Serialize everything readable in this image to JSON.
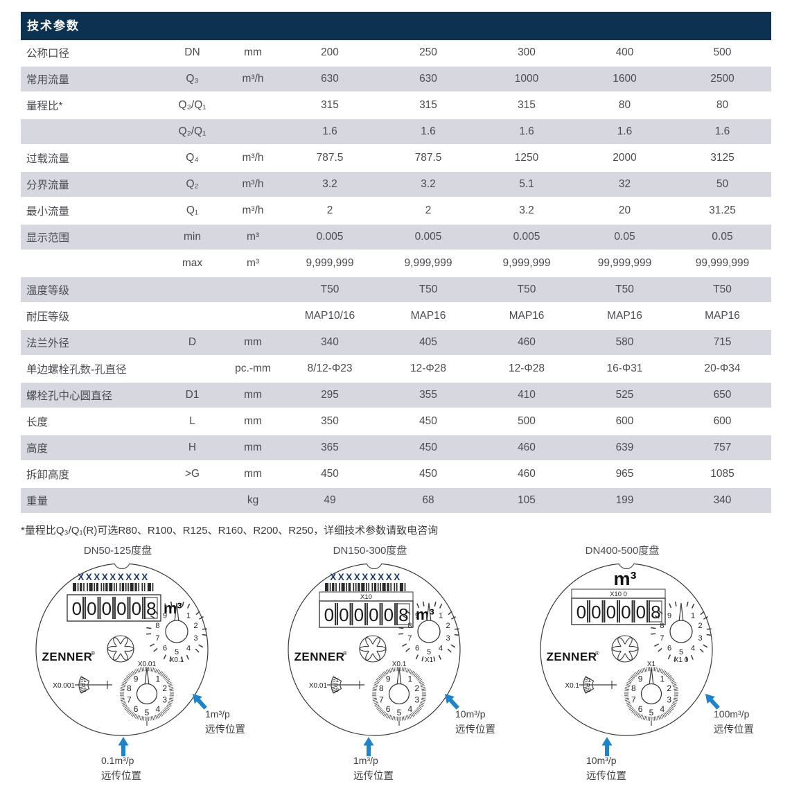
{
  "colors": {
    "header_bg": "#0d3150",
    "row_alt": "#d7d8df",
    "table_text": "#4b4c51",
    "line": "#3a3a3a",
    "serial": "#1c3a68",
    "arrow": "#1f83ca",
    "barcode": "#2a2a2a"
  },
  "table": {
    "title": "技术参数",
    "rows": [
      {
        "label": "公称口径",
        "symbol": "DN",
        "unit": "mm",
        "values": [
          "200",
          "250",
          "300",
          "400",
          "500"
        ]
      },
      {
        "label": "常用流量",
        "symbol": "Q₃",
        "unit": "m³/h",
        "values": [
          "630",
          "630",
          "1000",
          "1600",
          "2500"
        ]
      },
      {
        "label": "量程比*",
        "symbol": "Q₃/Q₁",
        "unit": "",
        "values": [
          "315",
          "315",
          "315",
          "80",
          "80"
        ]
      },
      {
        "label": "",
        "symbol": "Q₂/Q₁",
        "unit": "",
        "values": [
          "1.6",
          "1.6",
          "1.6",
          "1.6",
          "1.6"
        ]
      },
      {
        "label": "过载流量",
        "symbol": "Q₄",
        "unit": "m³/h",
        "values": [
          "787.5",
          "787.5",
          "1250",
          "2000",
          "3125"
        ]
      },
      {
        "label": "分界流量",
        "symbol": "Q₂",
        "unit": "m³/h",
        "values": [
          "3.2",
          "3.2",
          "5.1",
          "32",
          "50"
        ]
      },
      {
        "label": "最小流量",
        "symbol": "Q₁",
        "unit": "m³/h",
        "values": [
          "2",
          "2",
          "3.2",
          "20",
          "31.25"
        ]
      },
      {
        "label": "显示范围",
        "symbol": "min",
        "unit": "m³",
        "values": [
          "0.005",
          "0.005",
          "0.005",
          "0.05",
          "0.05"
        ]
      },
      {
        "label": "",
        "symbol": "max",
        "unit": "m³",
        "values": [
          "9,999,999",
          "9,999,999",
          "9,999,999",
          "99,999,999",
          "99,999,999"
        ]
      },
      {
        "label": "温度等级",
        "symbol": "",
        "unit": "",
        "values": [
          "T50",
          "T50",
          "T50",
          "T50",
          "T50"
        ]
      },
      {
        "label": "耐压等级",
        "symbol": "",
        "unit": "",
        "values": [
          "MAP10/16",
          "MAP16",
          "MAP16",
          "MAP16",
          "MAP16"
        ]
      },
      {
        "label": "法兰外径",
        "symbol": "D",
        "unit": "mm",
        "values": [
          "340",
          "405",
          "460",
          "580",
          "715"
        ]
      },
      {
        "label": "单边螺栓孔数-孔直径",
        "symbol": "",
        "unit": "pc.-mm",
        "values": [
          "8/12-Φ23",
          "12-Φ28",
          "12-Φ28",
          "16-Φ31",
          "20-Φ34"
        ]
      },
      {
        "label": "螺栓孔中心圆直径",
        "symbol": "D1",
        "unit": "mm",
        "values": [
          "295",
          "355",
          "410",
          "525",
          "650"
        ]
      },
      {
        "label": "长度",
        "symbol": "L",
        "unit": "mm",
        "values": [
          "350",
          "450",
          "500",
          "600",
          "600"
        ]
      },
      {
        "label": "高度",
        "symbol": "H",
        "unit": "mm",
        "values": [
          "365",
          "450",
          "460",
          "639",
          "757"
        ]
      },
      {
        "label": "拆卸高度",
        "symbol": ">G",
        "unit": "mm",
        "values": [
          "450",
          "450",
          "460",
          "965",
          "1085"
        ]
      },
      {
        "label": "重量",
        "symbol": "",
        "unit": "kg",
        "values": [
          "49",
          "68",
          "105",
          "199",
          "340"
        ]
      }
    ]
  },
  "footnote": "*量程比Q₃/Q₁(R)可选R80、R100、R125、R160、R200、R250，详细技术参数请致电咨询",
  "dials": {
    "brand": "ZENNER",
    "reg_mark": "®",
    "serial": "XXXXXXXXX",
    "unit": "m³",
    "register_digits": [
      "0",
      "0",
      "0",
      "0",
      "0",
      "8"
    ],
    "pointer_digits": [
      "1",
      "2",
      "3",
      "4",
      "5",
      "6",
      "7",
      "8",
      "9"
    ],
    "sector_digits": [
      "1",
      "0",
      "9"
    ],
    "items": [
      {
        "title": "DN50-125度盘",
        "show_serial": true,
        "show_barcode": true,
        "unit_position": "right",
        "register_top_label": "",
        "top_right_dial_label": "X0.1",
        "bottom_dial_label": "X0.01",
        "sector_label": "X0.001",
        "arrow_right_value": "1m³/p",
        "arrow_right_caption": "远传位置",
        "arrow_bottom_value": "0.1m³/p",
        "arrow_bottom_caption": "远传位置"
      },
      {
        "title": "DN150-300度盘",
        "show_serial": true,
        "show_barcode": true,
        "unit_position": "right",
        "register_top_label": "X10",
        "top_right_dial_label": "X1",
        "bottom_dial_label": "X0.1",
        "sector_label": "X0.01",
        "arrow_right_value": "10m³/p",
        "arrow_right_caption": "远传位置",
        "arrow_bottom_value": "1m³/p",
        "arrow_bottom_caption": "远传位置"
      },
      {
        "title": "DN400-500度盘",
        "show_serial": false,
        "show_barcode": false,
        "unit_position": "above",
        "register_top_label": "X10  0",
        "top_right_dial_label": "X1 0",
        "bottom_dial_label": "X1",
        "sector_label": "X0.1",
        "arrow_right_value": "100m³/p",
        "arrow_right_caption": "远传位置",
        "arrow_bottom_value": "10m³/p",
        "arrow_bottom_caption": "远传位置"
      }
    ]
  }
}
